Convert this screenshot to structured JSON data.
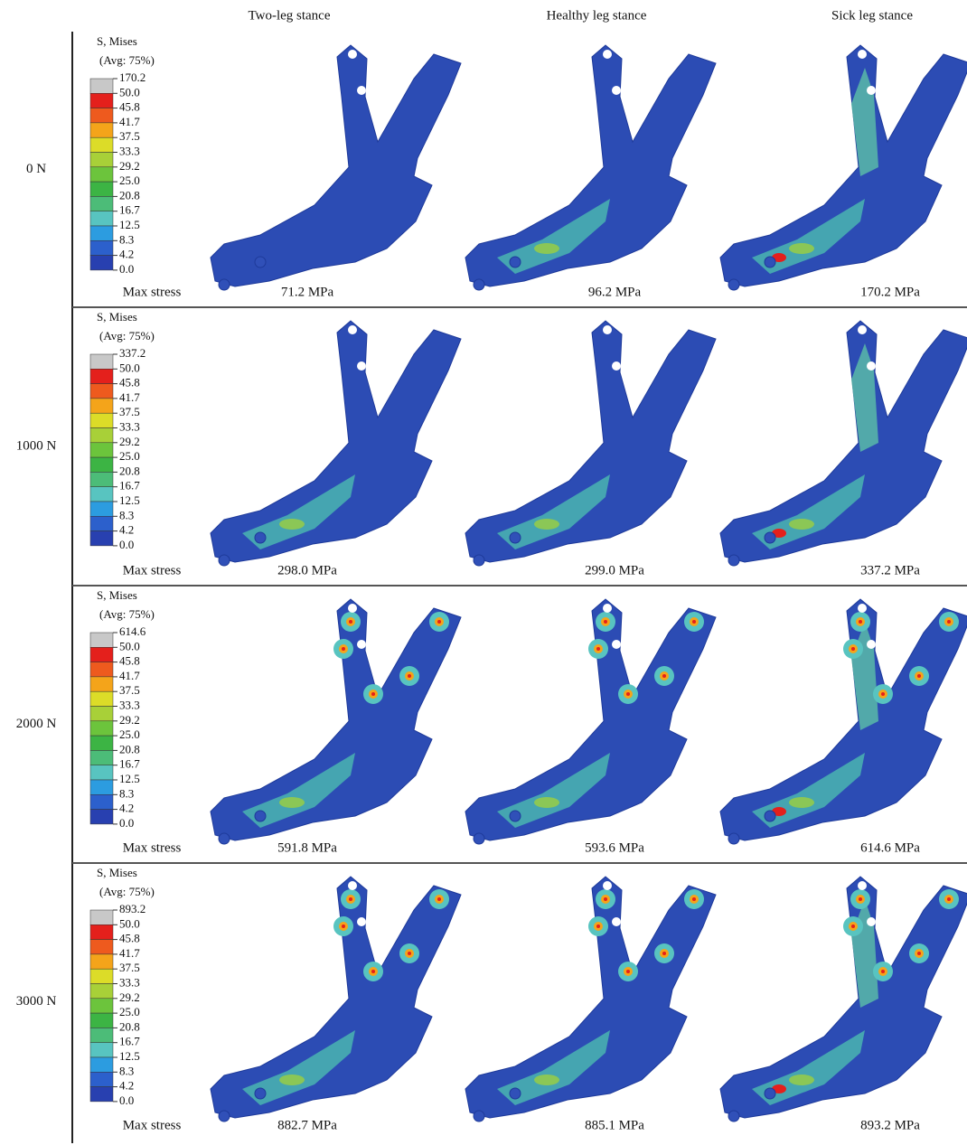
{
  "columns": [
    "Two-leg stance",
    "Healthy leg stance",
    "Sick leg stance"
  ],
  "legend_colors": [
    "#c8c8c8",
    "#e4201c",
    "#ee5a1e",
    "#f4a41a",
    "#dcdc28",
    "#a8d038",
    "#6cc43c",
    "#3cb444",
    "#4cbc78",
    "#58c4c0",
    "#2c9ce0",
    "#2c60cc",
    "#2840b0"
  ],
  "rows": [
    {
      "label": "0 N",
      "legend_title": "S, Mises",
      "legend_subtitle": "(Avg: 75%)",
      "legend_labels": [
        "170.2",
        "50.0",
        "45.8",
        "41.7",
        "37.5",
        "33.3",
        "29.2",
        "25.0",
        "20.8",
        "16.7",
        "12.5",
        "8.3",
        "4.2",
        "0.0"
      ],
      "max_stress_label": "Max stress",
      "max_stress": [
        "71.2 MPa",
        "96.2 MPa",
        "170.2 MPa"
      ]
    },
    {
      "label": "1000 N",
      "legend_title": "S, Mises",
      "legend_subtitle": "(Avg: 75%)",
      "legend_labels": [
        "337.2",
        "50.0",
        "45.8",
        "41.7",
        "37.5",
        "33.3",
        "29.2",
        "25.0",
        "20.8",
        "16.7",
        "12.5",
        "8.3",
        "4.2",
        "0.0"
      ],
      "max_stress_label": "Max stress",
      "max_stress": [
        "298.0 MPa",
        "299.0 MPa",
        "337.2 MPa"
      ]
    },
    {
      "label": "2000 N",
      "legend_title": "S, Mises",
      "legend_subtitle": "(Avg: 75%)",
      "legend_labels": [
        "614.6",
        "50.0",
        "45.8",
        "41.7",
        "37.5",
        "33.3",
        "29.2",
        "25.0",
        "20.8",
        "16.7",
        "12.5",
        "8.3",
        "4.2",
        "0.0"
      ],
      "max_stress_label": "Max stress",
      "max_stress": [
        "591.8 MPa",
        "593.6 MPa",
        "614.6 MPa"
      ]
    },
    {
      "label": "3000 N",
      "legend_title": "S, Mises",
      "legend_subtitle": "(Avg: 75%)",
      "legend_labels": [
        "893.2",
        "50.0",
        "45.8",
        "41.7",
        "37.5",
        "33.3",
        "29.2",
        "25.0",
        "20.8",
        "16.7",
        "12.5",
        "8.3",
        "4.2",
        "0.0"
      ],
      "max_stress_label": "Max stress",
      "max_stress": [
        "882.7 MPa",
        "885.1 MPa",
        "893.2 MPa"
      ]
    }
  ]
}
